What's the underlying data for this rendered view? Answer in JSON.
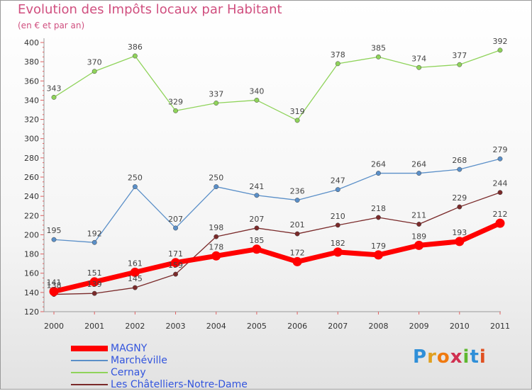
{
  "title": "Evolution des Impôts locaux par Habitant",
  "subtitle": "(en € et par an)",
  "brand": "Proxiti",
  "chart_data": {
    "type": "line",
    "title": "Evolution des Impôts locaux par Habitant",
    "subtitle": "(en € et par an)",
    "xlabel": "",
    "ylabel": "",
    "x": [
      2000,
      2001,
      2002,
      2003,
      2004,
      2005,
      2006,
      2007,
      2008,
      2009,
      2010,
      2011
    ],
    "ylim": [
      120,
      400
    ],
    "yticks": [
      120,
      140,
      160,
      180,
      200,
      220,
      240,
      260,
      280,
      300,
      320,
      340,
      360,
      380,
      400
    ],
    "grid": false,
    "legend_position": "bottom-left",
    "series": [
      {
        "name": "MAGNY",
        "color": "#ff0000",
        "emphasis": true,
        "values": [
          141,
          151,
          161,
          171,
          178,
          185,
          172,
          182,
          179,
          189,
          193,
          212
        ]
      },
      {
        "name": "Marchéville",
        "color": "#5a8fc8",
        "values": [
          195,
          192,
          250,
          207,
          250,
          241,
          236,
          247,
          264,
          264,
          268,
          279
        ]
      },
      {
        "name": "Cernay",
        "color": "#8fd35a",
        "values": [
          343,
          370,
          386,
          329,
          337,
          340,
          319,
          378,
          385,
          374,
          377,
          392
        ]
      },
      {
        "name": "Les Châtelliers-Notre-Dame",
        "color": "#7a2a2a",
        "values": [
          138,
          139,
          145,
          159,
          198,
          207,
          201,
          210,
          218,
          211,
          229,
          244
        ]
      }
    ]
  }
}
